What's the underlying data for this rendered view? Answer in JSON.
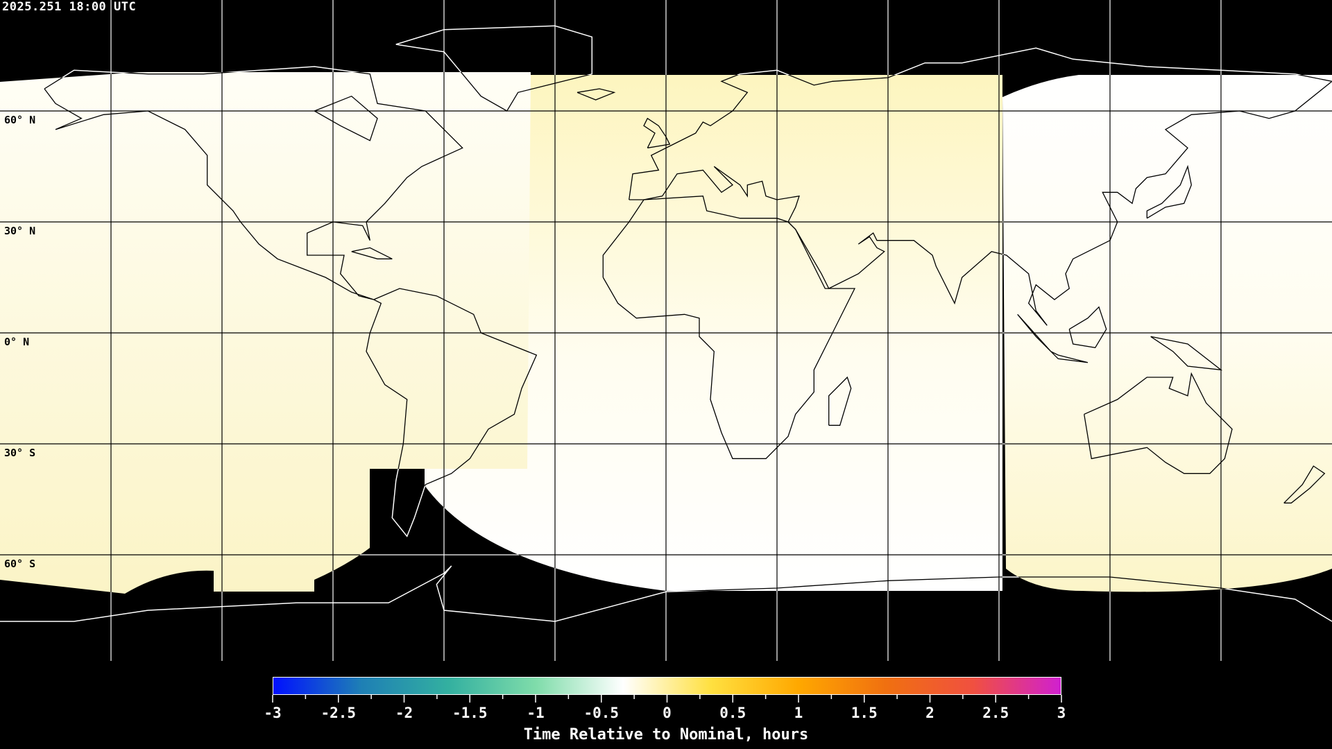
{
  "header": {
    "timestamp": "2025.251 18:00 UTC"
  },
  "map": {
    "projection": "equirectangular",
    "gridline_spacing_deg": 30,
    "lat_labels": [
      {
        "text": "60° N",
        "lat": 60
      },
      {
        "text": "30° N",
        "lat": 30
      },
      {
        "text": "0° N",
        "lat": 0
      },
      {
        "text": "30° S",
        "lat": -30
      },
      {
        "text": "60° S",
        "lat": -60
      }
    ],
    "no_data_color": "#000000"
  },
  "colorbar": {
    "min": -3,
    "max": 3,
    "ticks": [
      "-3",
      "-2.5",
      "-2",
      "-1.5",
      "-1",
      "-0.5",
      "0",
      "0.5",
      "1",
      "1.5",
      "2",
      "2.5",
      "3"
    ],
    "label": "Time Relative to Nominal, hours",
    "colors": [
      "#0010ff",
      "#1e7fb5",
      "#33b0a0",
      "#7fdcaa",
      "#ffffff",
      "#ffe040",
      "#ffa800",
      "#f07010",
      "#f05040",
      "#d020d0"
    ]
  }
}
